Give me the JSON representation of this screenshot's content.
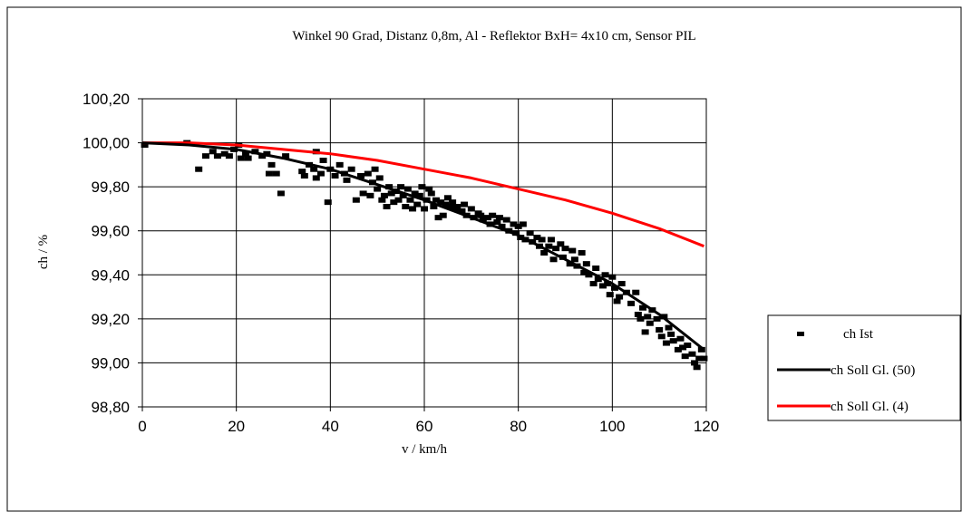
{
  "chart_data": {
    "type": "scatter",
    "title": "Winkel 90 Grad, Distanz 0,8m, Al - Reflektor BxH= 4x10 cm, Sensor PIL",
    "xlabel": "v / km/h",
    "ylabel": "ch / %",
    "xlim": [
      0,
      120
    ],
    "ylim": [
      98.8,
      100.2
    ],
    "xticks": [
      0,
      20,
      40,
      60,
      80,
      100,
      120
    ],
    "xtick_labels": [
      "0",
      "20",
      "40",
      "60",
      "80",
      "100",
      "120"
    ],
    "yticks": [
      98.8,
      99.0,
      99.2,
      99.4,
      99.6,
      99.8,
      100.0,
      100.2
    ],
    "ytick_labels": [
      "98,80",
      "99,00",
      "99,20",
      "99,40",
      "99,60",
      "99,80",
      "100,00",
      "100,20"
    ],
    "grid": true,
    "legend_position": "right",
    "series": [
      {
        "name": "ch Ist",
        "kind": "markers",
        "color": "#000000",
        "points": [
          [
            0.5,
            99.99
          ],
          [
            9.5,
            100.0
          ],
          [
            12,
            99.88
          ],
          [
            13.5,
            99.94
          ],
          [
            15,
            99.96
          ],
          [
            16,
            99.94
          ],
          [
            17.5,
            99.95
          ],
          [
            18.5,
            99.94
          ],
          [
            19.5,
            99.97
          ],
          [
            20.5,
            99.99
          ],
          [
            21,
            99.93
          ],
          [
            22,
            99.95
          ],
          [
            22.5,
            99.93
          ],
          [
            24,
            99.96
          ],
          [
            25.5,
            99.94
          ],
          [
            26.5,
            99.95
          ],
          [
            27.5,
            99.9
          ],
          [
            27,
            99.86
          ],
          [
            28.5,
            99.86
          ],
          [
            29.5,
            99.77
          ],
          [
            30.5,
            99.94
          ],
          [
            34,
            99.87
          ],
          [
            34.5,
            99.85
          ],
          [
            35.5,
            99.9
          ],
          [
            36.5,
            99.88
          ],
          [
            37,
            99.84
          ],
          [
            37,
            99.96
          ],
          [
            38,
            99.86
          ],
          [
            38.5,
            99.92
          ],
          [
            39.5,
            99.73
          ],
          [
            40,
            99.88
          ],
          [
            41,
            99.85
          ],
          [
            42,
            99.9
          ],
          [
            43,
            99.86
          ],
          [
            43.5,
            99.83
          ],
          [
            44.5,
            99.88
          ],
          [
            45.5,
            99.74
          ],
          [
            46.5,
            99.85
          ],
          [
            47,
            99.77
          ],
          [
            48,
            99.86
          ],
          [
            48.5,
            99.76
          ],
          [
            49,
            99.82
          ],
          [
            49.5,
            99.88
          ],
          [
            50,
            99.79
          ],
          [
            50.5,
            99.84
          ],
          [
            51,
            99.74
          ],
          [
            51.5,
            99.76
          ],
          [
            52,
            99.71
          ],
          [
            52.5,
            99.8
          ],
          [
            53,
            99.77
          ],
          [
            53.5,
            99.73
          ],
          [
            54,
            99.78
          ],
          [
            54.5,
            99.74
          ],
          [
            55,
            99.8
          ],
          [
            55.5,
            99.76
          ],
          [
            56,
            99.71
          ],
          [
            56.5,
            99.79
          ],
          [
            57,
            99.74
          ],
          [
            57.5,
            99.7
          ],
          [
            58,
            99.77
          ],
          [
            58.5,
            99.72
          ],
          [
            59,
            99.76
          ],
          [
            59.5,
            99.8
          ],
          [
            60,
            99.7
          ],
          [
            60.5,
            99.74
          ],
          [
            61,
            99.79
          ],
          [
            61.5,
            99.77
          ],
          [
            62,
            99.71
          ],
          [
            62.5,
            99.74
          ],
          [
            63,
            99.66
          ],
          [
            63.5,
            99.73
          ],
          [
            64,
            99.67
          ],
          [
            64.5,
            99.72
          ],
          [
            65,
            99.75
          ],
          [
            65.5,
            99.71
          ],
          [
            66,
            99.73
          ],
          [
            66.5,
            99.7
          ],
          [
            67,
            99.71
          ],
          [
            68,
            99.69
          ],
          [
            68.5,
            99.72
          ],
          [
            69,
            99.67
          ],
          [
            70,
            99.7
          ],
          [
            70.5,
            99.66
          ],
          [
            71.5,
            99.68
          ],
          [
            72,
            99.67
          ],
          [
            72.5,
            99.65
          ],
          [
            73.5,
            99.66
          ],
          [
            74,
            99.63
          ],
          [
            74.5,
            99.67
          ],
          [
            75.5,
            99.64
          ],
          [
            76,
            99.66
          ],
          [
            76.5,
            99.62
          ],
          [
            77.5,
            99.65
          ],
          [
            78,
            99.6
          ],
          [
            79,
            99.63
          ],
          [
            79.5,
            99.59
          ],
          [
            80,
            99.62
          ],
          [
            80.5,
            99.57
          ],
          [
            81,
            99.63
          ],
          [
            81.5,
            99.56
          ],
          [
            82.5,
            99.59
          ],
          [
            83,
            99.55
          ],
          [
            84,
            99.57
          ],
          [
            84.5,
            99.53
          ],
          [
            85,
            99.56
          ],
          [
            85.5,
            99.5
          ],
          [
            86.5,
            99.53
          ],
          [
            87,
            99.56
          ],
          [
            87.5,
            99.47
          ],
          [
            88,
            99.52
          ],
          [
            89,
            99.54
          ],
          [
            89.5,
            99.48
          ],
          [
            90,
            99.52
          ],
          [
            91,
            99.45
          ],
          [
            91.5,
            99.51
          ],
          [
            92,
            99.47
          ],
          [
            92.5,
            99.44
          ],
          [
            93.5,
            99.5
          ],
          [
            94,
            99.41
          ],
          [
            94.5,
            99.45
          ],
          [
            95,
            99.4
          ],
          [
            96,
            99.36
          ],
          [
            96.5,
            99.43
          ],
          [
            97,
            99.38
          ],
          [
            98,
            99.35
          ],
          [
            98.5,
            99.4
          ],
          [
            99,
            99.36
          ],
          [
            99.5,
            99.31
          ],
          [
            100,
            99.39
          ],
          [
            100.5,
            99.34
          ],
          [
            101,
            99.28
          ],
          [
            101.5,
            99.3
          ],
          [
            102,
            99.36
          ],
          [
            103,
            99.32
          ],
          [
            104,
            99.27
          ],
          [
            105,
            99.32
          ],
          [
            105.5,
            99.22
          ],
          [
            106,
            99.2
          ],
          [
            106.5,
            99.25
          ],
          [
            107,
            99.14
          ],
          [
            107.5,
            99.21
          ],
          [
            108,
            99.18
          ],
          [
            108.5,
            99.24
          ],
          [
            109.5,
            99.2
          ],
          [
            110,
            99.15
          ],
          [
            110.5,
            99.12
          ],
          [
            111,
            99.21
          ],
          [
            111.5,
            99.09
          ],
          [
            112,
            99.16
          ],
          [
            112.5,
            99.13
          ],
          [
            113,
            99.1
          ],
          [
            114,
            99.06
          ],
          [
            114.5,
            99.11
          ],
          [
            115,
            99.07
          ],
          [
            115.5,
            99.03
          ],
          [
            116,
            99.08
          ],
          [
            117,
            99.04
          ],
          [
            117.5,
            99.0
          ],
          [
            118,
            98.98
          ],
          [
            118.5,
            99.02
          ],
          [
            119,
            99.06
          ],
          [
            119.5,
            99.02
          ]
        ]
      },
      {
        "name": "ch Soll Gl. (50)",
        "kind": "line",
        "color": "#000000",
        "x": [
          0,
          10,
          20,
          30,
          40,
          50,
          60,
          70,
          80,
          90,
          100,
          110,
          119.5
        ],
        "y": [
          100.0,
          99.99,
          99.97,
          99.93,
          99.88,
          99.81,
          99.74,
          99.66,
          99.58,
          99.47,
          99.36,
          99.22,
          99.06
        ]
      },
      {
        "name": "ch Soll Gl. (4)",
        "kind": "line",
        "color": "#ff0000",
        "x": [
          0,
          10,
          20,
          30,
          40,
          50,
          60,
          70,
          80,
          90,
          100,
          110,
          119.5
        ],
        "y": [
          100.0,
          100.0,
          99.99,
          99.97,
          99.95,
          99.92,
          99.88,
          99.84,
          99.79,
          99.74,
          99.68,
          99.61,
          99.53
        ]
      }
    ]
  }
}
